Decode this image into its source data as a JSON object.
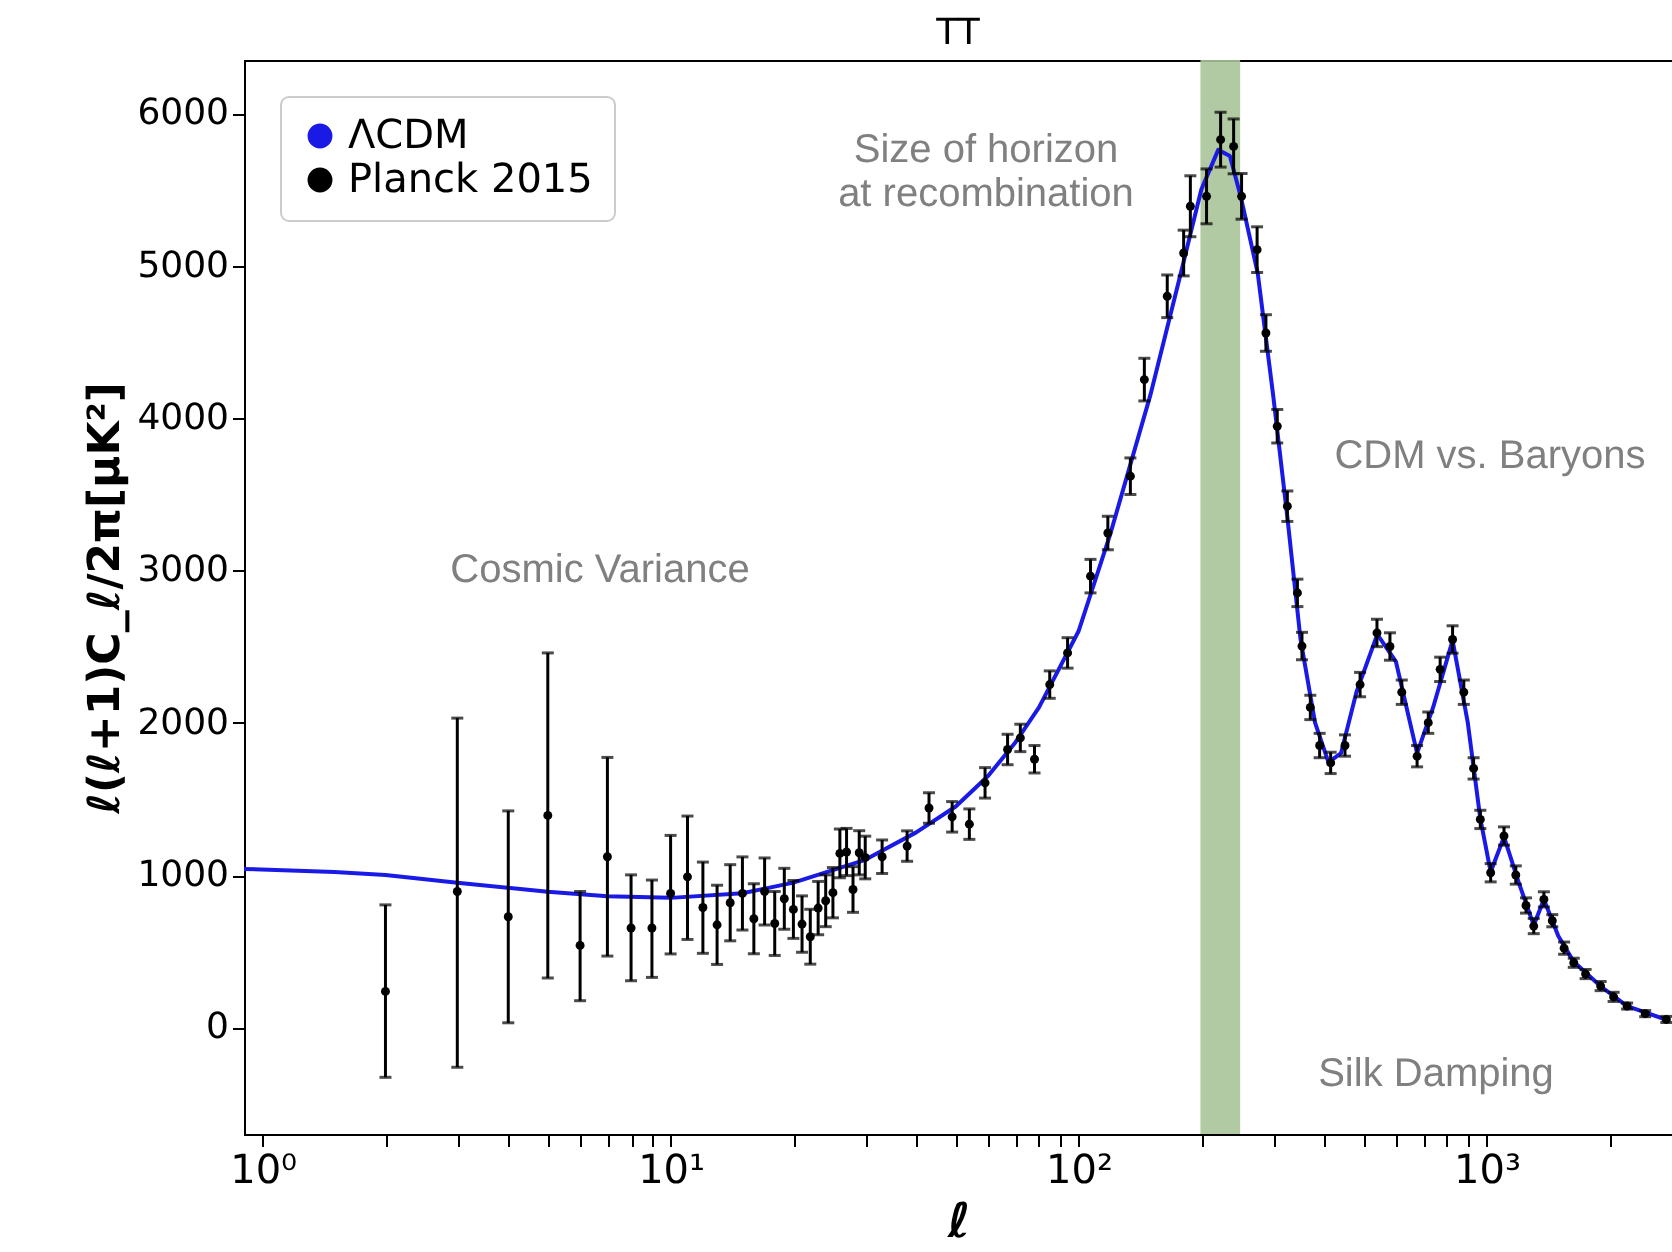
{
  "chart_data": {
    "type": "line",
    "title": "TT",
    "xlabel": "ℓ",
    "ylabel": "ℓ(ℓ+1)C_ℓ/2π[μK²]",
    "log": "x",
    "grid": false,
    "legend": "top left",
    "xlim": [
      0.9,
      2850
    ],
    "ylim": [
      -700,
      6350
    ],
    "xticks": [
      {
        "value": 1,
        "label": "10⁰"
      },
      {
        "value": 2,
        "label": null
      },
      {
        "value": 3,
        "label": null
      },
      {
        "value": 4,
        "label": null
      },
      {
        "value": 5,
        "label": null
      },
      {
        "value": 6,
        "label": null
      },
      {
        "value": 7,
        "label": null
      },
      {
        "value": 8,
        "label": null
      },
      {
        "value": 9,
        "label": null
      },
      {
        "value": 10,
        "label": "10¹"
      },
      {
        "value": 20,
        "label": null
      },
      {
        "value": 30,
        "label": null
      },
      {
        "value": 40,
        "label": null
      },
      {
        "value": 50,
        "label": null
      },
      {
        "value": 60,
        "label": null
      },
      {
        "value": 70,
        "label": null
      },
      {
        "value": 80,
        "label": null
      },
      {
        "value": 90,
        "label": null
      },
      {
        "value": 100,
        "label": "10²"
      },
      {
        "value": 200,
        "label": null
      },
      {
        "value": 300,
        "label": null
      },
      {
        "value": 400,
        "label": null
      },
      {
        "value": 500,
        "label": null
      },
      {
        "value": 600,
        "label": null
      },
      {
        "value": 700,
        "label": null
      },
      {
        "value": 800,
        "label": null
      },
      {
        "value": 900,
        "label": null
      },
      {
        "value": 1000,
        "label": "10³"
      },
      {
        "value": 2000,
        "label": null
      }
    ],
    "yticks": [
      0,
      1000,
      2000,
      3000,
      4000,
      5000,
      6000
    ],
    "bands": [
      {
        "axis": "x",
        "from": 199,
        "to": 249,
        "color": "#a9c49a"
      }
    ],
    "annotations": [
      "Cosmic Variance",
      "Size of horizon\nat recombination",
      "CDM vs. Baryons",
      "Silk Damping"
    ],
    "series": [
      {
        "name": "ΛCDM",
        "color": "#1a1ae6",
        "line_style": "solid",
        "x": [
          0.9,
          1.5,
          2,
          3,
          5,
          7,
          10,
          15,
          20,
          30,
          40,
          50,
          60,
          70,
          80,
          100,
          120,
          150,
          180,
          200,
          220,
          235,
          250,
          275,
          300,
          325,
          350,
          380,
          410,
          440,
          480,
          540,
          600,
          676,
          740,
          826,
          900,
          966,
          1024,
          1104,
          1200,
          1306,
          1383,
          1500,
          1637,
          1905,
          2212,
          2500,
          2760
        ],
        "values": [
          1040,
          1020,
          1000,
          950,
          890,
          860,
          850,
          880,
          950,
          1100,
          1280,
          1450,
          1650,
          1870,
          2100,
          2600,
          3250,
          4150,
          5000,
          5500,
          5760,
          5720,
          5450,
          4950,
          4150,
          3350,
          2550,
          2000,
          1740,
          1800,
          2200,
          2580,
          2400,
          1800,
          2100,
          2540,
          2000,
          1370,
          1020,
          1250,
          950,
          670,
          840,
          600,
          430,
          270,
          140,
          90,
          50
        ]
      },
      {
        "name": "Planck 2015",
        "type": "scatter",
        "marker": "circle",
        "color": "#000000",
        "x": [
          2,
          3,
          4,
          5,
          6,
          7,
          8,
          9,
          10,
          11,
          12,
          13,
          14,
          15,
          16,
          17,
          18,
          19,
          20,
          21,
          22,
          23,
          24,
          25,
          26,
          27,
          28,
          29,
          30,
          33,
          38,
          43,
          49,
          54,
          59,
          67,
          72,
          78,
          85,
          94,
          107,
          118,
          134,
          145,
          165,
          181,
          188,
          206,
          223,
          240,
          251,
          274,
          288,
          307,
          325,
          344,
          353,
          370,
          390,
          415,
          450,
          490,
          539,
          580,
          620,
          676,
          720,
          770,
          826,
          880,
          930,
          966,
          1024,
          1104,
          1180,
          1250,
          1306,
          1383,
          1450,
          1550,
          1637,
          1750,
          1905,
          2050,
          2212,
          2450,
          2760
        ],
        "values": [
          236,
          892,
          726,
          1391,
          538,
          1120,
          652,
          652,
          879,
          988,
          787,
          673,
          818,
          879,
          713,
          892,
          682,
          844,
          774,
          678,
          595,
          783,
          831,
          884,
          1142,
          1151,
          905,
          1146,
          1115,
          1120,
          1190,
          1440,
          1382,
          1334,
          1605,
          1824,
          1900,
          1760,
          2250,
          2458,
          2962,
          3245,
          3618,
          4252,
          4799,
          5083,
          5390,
          5455,
          5827,
          5783,
          5455,
          5105,
          4558,
          3946,
          3421,
          2852,
          2503,
          2100,
          1850,
          1736,
          1850,
          2250,
          2589,
          2500,
          2200,
          1780,
          2000,
          2350,
          2546,
          2200,
          1700,
          1365,
          1015,
          1256,
          1000,
          800,
          665,
          840,
          700,
          520,
          424,
          350,
          271,
          200,
          140,
          90,
          52
        ],
        "errors": [
          [
            -328,
            804
          ],
          [
            -262,
            2030
          ],
          [
            30,
            1421
          ],
          [
            324,
            2458
          ],
          [
            175,
            892
          ],
          [
            468,
            1772
          ],
          [
            306,
            1001
          ],
          [
            328,
            967
          ],
          [
            482,
            1260
          ],
          [
            577,
            1387
          ],
          [
            486,
            1085
          ],
          260,
          250,
          240,
          230,
          220,
          210,
          200,
          190,
          185,
          180,
          175,
          170,
          165,
          160,
          155,
          150,
          145,
          140,
          110,
          100,
          100,
          100,
          100,
          100,
          100,
          90,
          90,
          90,
          100,
          110,
          110,
          120,
          140,
          140,
          150,
          200,
          180,
          180,
          180,
          150,
          150,
          120,
          110,
          100,
          90,
          90,
          80,
          80,
          70,
          70,
          80,
          90,
          90,
          80,
          70,
          70,
          80,
          90,
          80,
          70,
          60,
          60,
          60,
          60,
          50,
          50,
          50,
          40,
          40,
          30,
          30,
          30,
          30,
          20,
          20,
          20
        ]
      }
    ]
  }
}
